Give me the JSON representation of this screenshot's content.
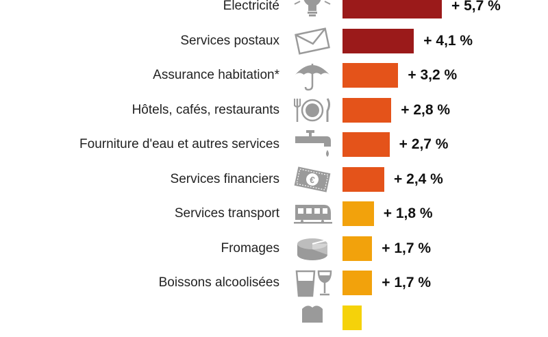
{
  "chart_data": {
    "type": "bar",
    "orientation": "horizontal",
    "title": "",
    "xlabel": "",
    "ylabel": "",
    "xlim": [
      0,
      5.7
    ],
    "grid": false,
    "categories": [
      "Electricité",
      "Services postaux",
      "Assurance habitation*",
      "Hôtels, cafés, restaurants",
      "Fourniture d'eau et autres services",
      "Services financiers",
      "Services transport",
      "Fromages",
      "Boissons alcoolisées"
    ],
    "values": [
      5.7,
      4.1,
      3.2,
      2.8,
      2.7,
      2.4,
      1.8,
      1.7,
      1.7
    ],
    "value_labels": [
      "+ 5,7 %",
      "+ 4,1 %",
      "+ 3,2 %",
      "+ 2,8 %",
      "+ 2,7 %",
      "+ 2,4 %",
      "+ 1,8 %",
      "+ 1,7 %",
      "+ 1,7 %"
    ],
    "bar_colors": [
      "#9b1a1a",
      "#9b1a1a",
      "#e4531a",
      "#e4531a",
      "#e4531a",
      "#e4531a",
      "#f2a20c",
      "#f2a20c",
      "#f2a20c"
    ],
    "icons": [
      "light-bulb-icon",
      "envelope-icon",
      "umbrella-icon",
      "plate-cutlery-icon",
      "water-tap-icon",
      "euro-banknote-icon",
      "train-icon",
      "cheese-icon",
      "glasses-icon"
    ],
    "partial_next_row_color": "#f5d20a"
  }
}
